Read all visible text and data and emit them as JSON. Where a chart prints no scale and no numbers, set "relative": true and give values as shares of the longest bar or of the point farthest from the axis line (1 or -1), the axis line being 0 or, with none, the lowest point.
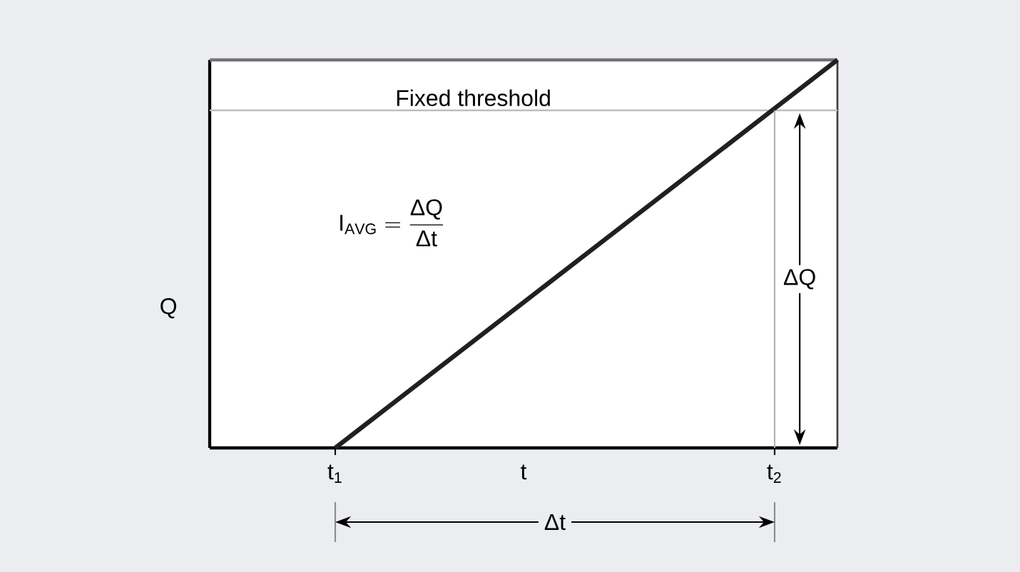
{
  "chart_data": {
    "type": "line",
    "relative": true,
    "xlabel": "t",
    "ylabel": "Q",
    "categories": [
      null,
      null,
      "t$_{1}$",
      null,
      null,
      null,
      null,
      null,
      null,
      "t$_{2}$",
      null
    ],
    "values": [
      null,
      null,
      0,
      0.125,
      0.25,
      0.375,
      0.5,
      0.625,
      0.75,
      0.875,
      1
    ],
    "color": "#231f20",
    "marker": "none",
    "line_style": "solid",
    "ref_lines": [
      {
        "axis": "y",
        "value": 0.87,
        "label": "Fixed threshold",
        "color": "#bcbec0"
      }
    ],
    "annotations": [
      "\\mathrm{I}_{\\mathrm{AVG}} = \\frac{\\mbox{ΔQ}}{\\mbox{Δt}}",
      "ΔQ",
      "Δt"
    ]
  }
}
